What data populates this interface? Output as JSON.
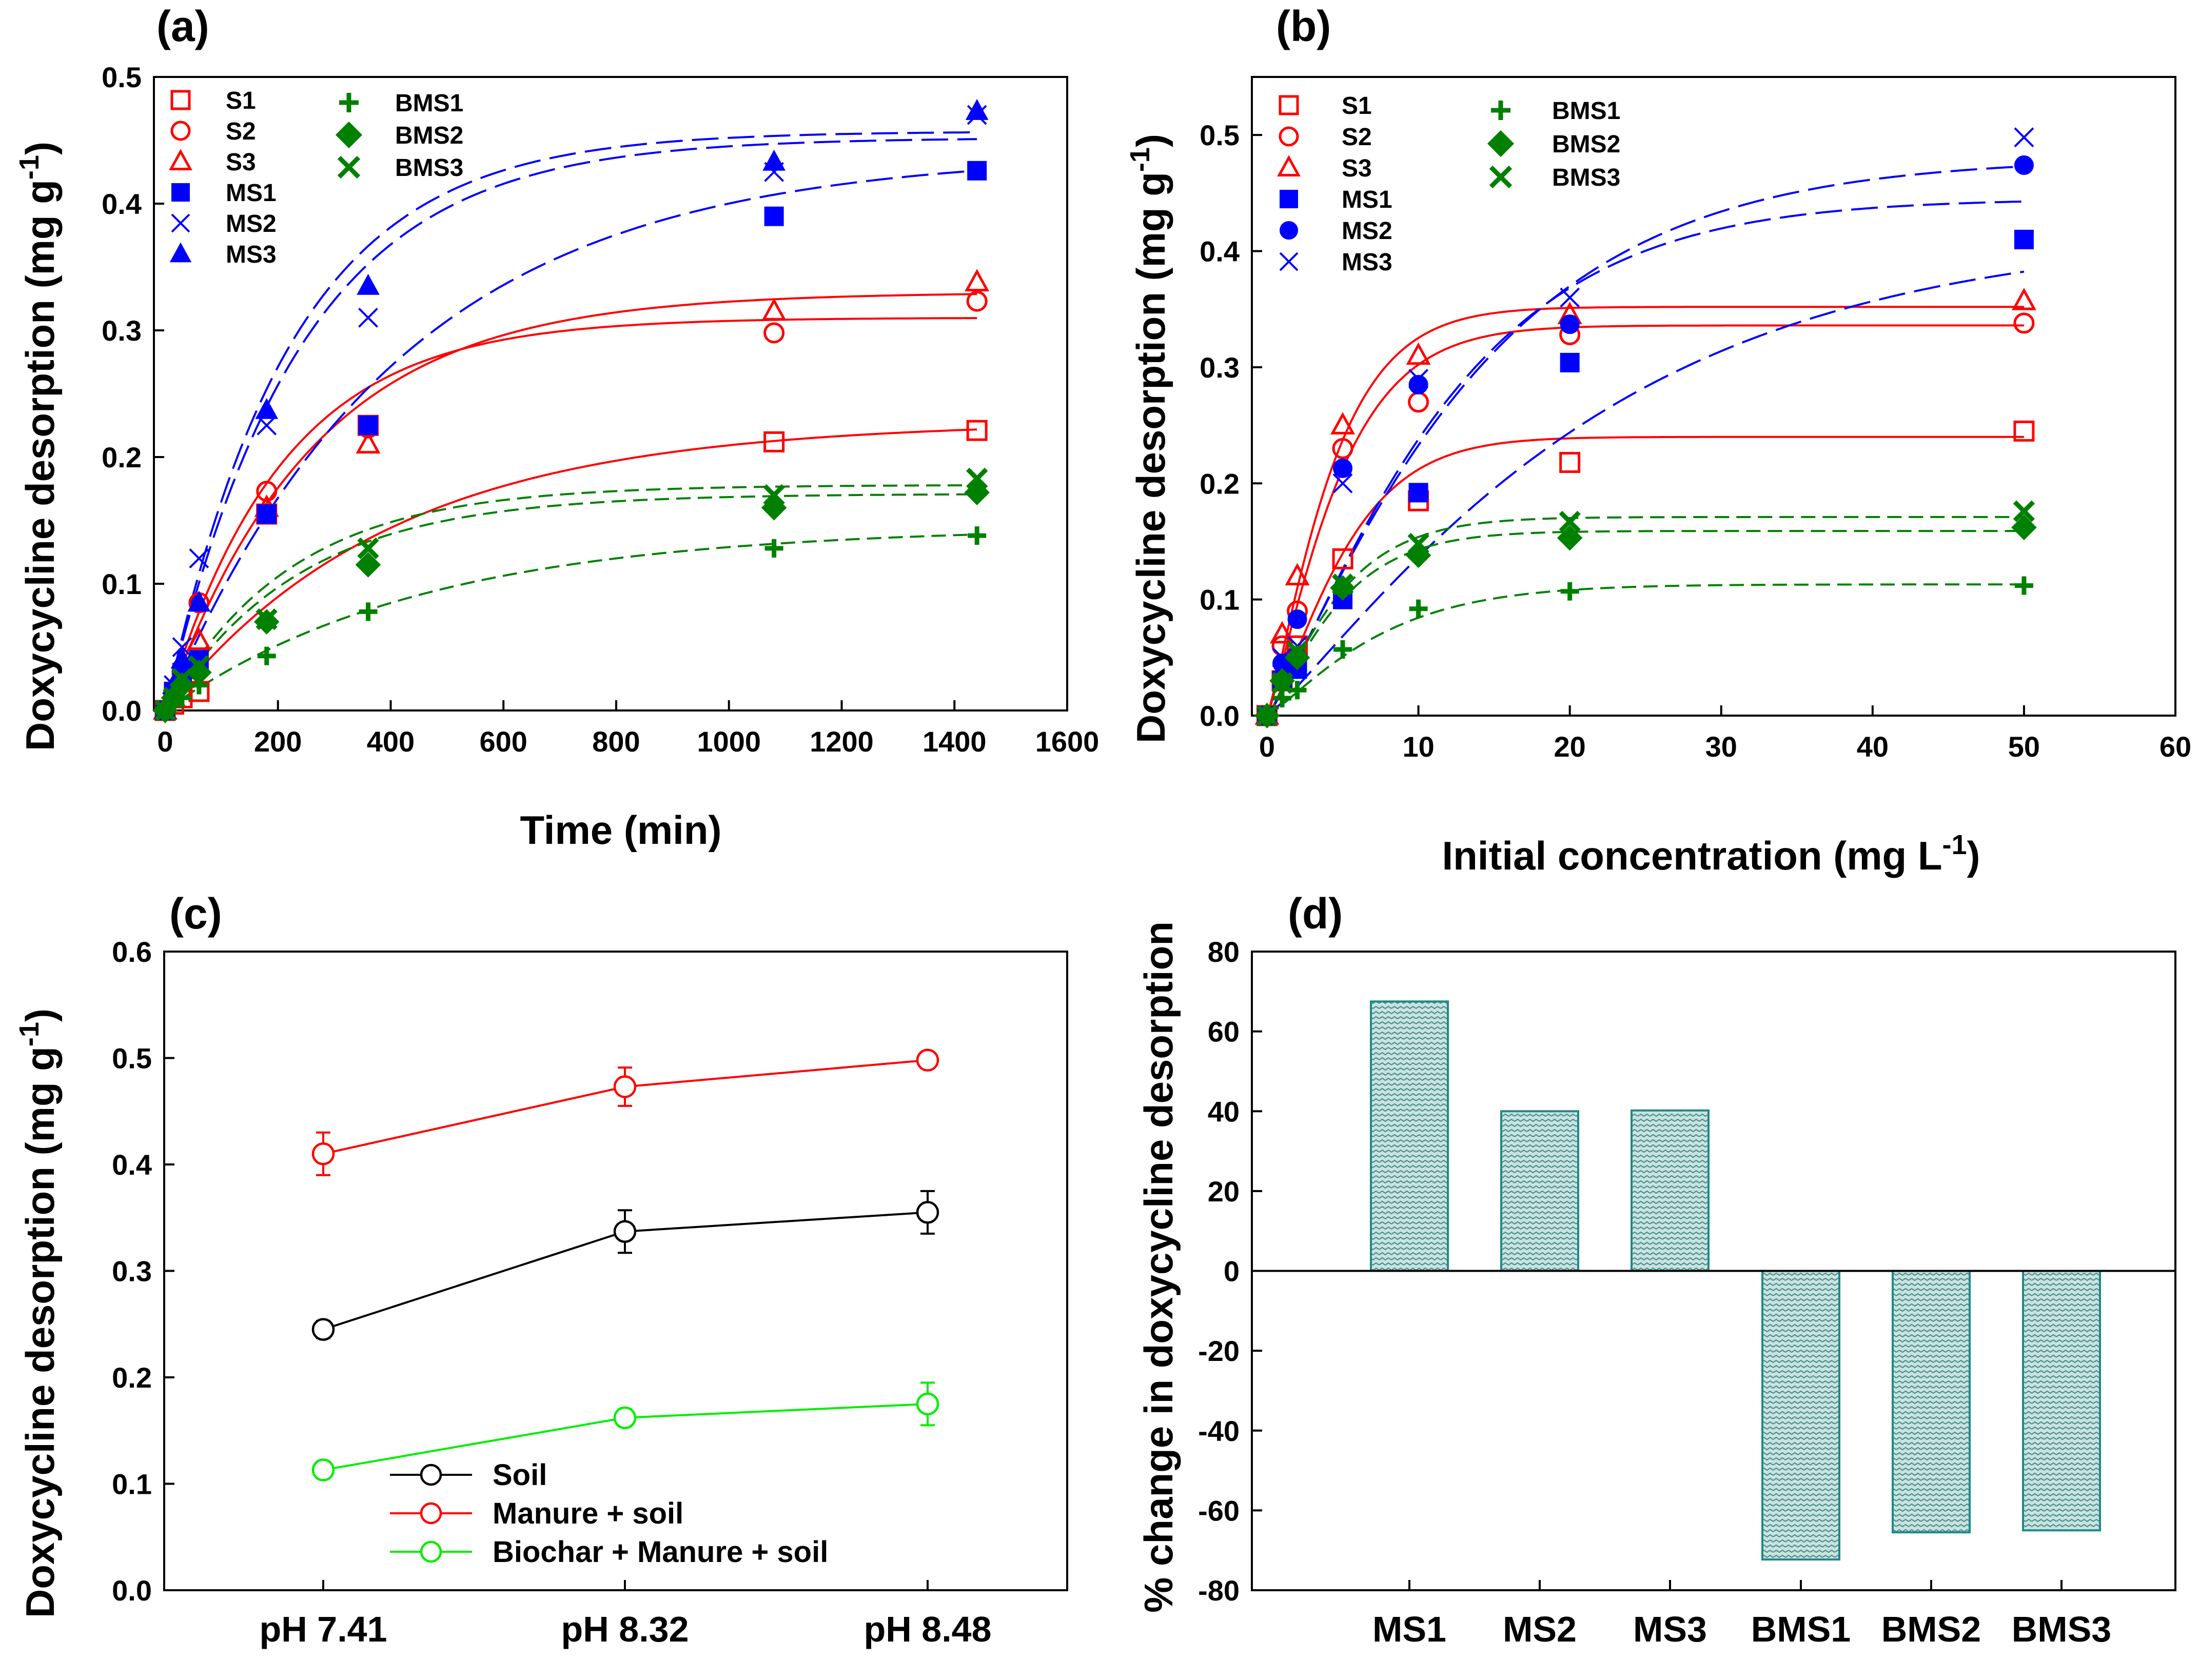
{
  "chart_data": [
    {
      "panel": "(a)",
      "type": "scatter",
      "xlabel": "Time (min)",
      "ylabel": "Doxycycline desorption (mg g-1)",
      "ylabel_base": "Doxycycline desorption (mg g",
      "ylabel_sup": "-1",
      "ylabel_close": ")",
      "xlim": [
        -20,
        1600
      ],
      "ylim": [
        0,
        0.5
      ],
      "xticks": [
        0,
        200,
        400,
        600,
        800,
        1000,
        1200,
        1400,
        1600
      ],
      "yticks": [
        0.0,
        0.1,
        0.2,
        0.3,
        0.4,
        0.5
      ],
      "xticklabels": [
        "0",
        "200",
        "400",
        "600",
        "800",
        "1000",
        "1200",
        "1400",
        "1600"
      ],
      "yticklabels": [
        "0.0",
        "0.1",
        "0.2",
        "0.3",
        "0.4",
        "0.5"
      ],
      "series": [
        {
          "name": "S1",
          "marker": "square-open",
          "color": "#ff0000",
          "x": [
            0,
            15,
            30,
            60,
            180,
            360,
            1080,
            1440
          ],
          "y": [
            0.0,
            0.005,
            0.01,
            0.015,
            0.155,
            0.225,
            0.212,
            0.221
          ],
          "fit": {
            "a": 0.228,
            "k": 0.0025,
            "style": "solid"
          }
        },
        {
          "name": "S2",
          "marker": "circle-open",
          "color": "#ff0000",
          "x": [
            0,
            15,
            30,
            60,
            180,
            360,
            1080,
            1440
          ],
          "y": [
            0.0,
            0.01,
            0.03,
            0.085,
            0.173,
            0.223,
            0.298,
            0.323
          ],
          "fit": {
            "a": 0.31,
            "k": 0.0048,
            "style": "solid"
          }
        },
        {
          "name": "S3",
          "marker": "triangle-open",
          "color": "#ff0000",
          "x": [
            0,
            15,
            30,
            60,
            180,
            360,
            1080,
            1440
          ],
          "y": [
            0.0,
            0.01,
            0.025,
            0.055,
            0.16,
            0.21,
            0.315,
            0.338
          ],
          "fit": {
            "a": 0.33,
            "k": 0.0038,
            "style": "solid"
          }
        },
        {
          "name": "MS1",
          "marker": "square-filled",
          "color": "#0000ff",
          "x": [
            0,
            15,
            30,
            60,
            180,
            360,
            1080,
            1440
          ],
          "y": [
            0.0,
            0.015,
            0.03,
            0.04,
            0.155,
            0.225,
            0.39,
            0.426
          ],
          "fit": {
            "a": 0.44,
            "k": 0.0024,
            "style": "dashed"
          }
        },
        {
          "name": "MS2",
          "marker": "x",
          "color": "#0000ff",
          "x": [
            0,
            15,
            30,
            60,
            180,
            360,
            1080,
            1440
          ],
          "y": [
            0.0,
            0.02,
            0.05,
            0.12,
            0.225,
            0.31,
            0.425,
            0.47
          ],
          "fit": {
            "a": 0.452,
            "k": 0.0042,
            "style": "dashed"
          }
        },
        {
          "name": "MS3",
          "marker": "triangle-filled",
          "color": "#0000ff",
          "x": [
            0,
            15,
            30,
            60,
            180,
            360,
            1080,
            1440
          ],
          "y": [
            0.0,
            0.02,
            0.04,
            0.085,
            0.237,
            0.335,
            0.433,
            0.473
          ],
          "fit": {
            "a": 0.457,
            "k": 0.0045,
            "style": "dashed"
          }
        },
        {
          "name": "BMS1",
          "marker": "plus",
          "color": "#008000",
          "x": [
            0,
            15,
            30,
            60,
            180,
            360,
            1080,
            1440
          ],
          "y": [
            0.0,
            0.005,
            0.01,
            0.02,
            0.043,
            0.078,
            0.128,
            0.138
          ],
          "fit": {
            "a": 0.145,
            "k": 0.0022,
            "style": "dashed"
          }
        },
        {
          "name": "BMS2",
          "marker": "diamond-filled",
          "color": "#008000",
          "x": [
            0,
            15,
            30,
            60,
            180,
            360,
            1080,
            1440
          ],
          "y": [
            0.0,
            0.01,
            0.02,
            0.03,
            0.07,
            0.115,
            0.16,
            0.172
          ],
          "fit": {
            "a": 0.171,
            "k": 0.0042,
            "style": "dashed"
          }
        },
        {
          "name": "BMS3",
          "marker": "x-thick",
          "color": "#008000",
          "x": [
            0,
            15,
            30,
            60,
            180,
            360,
            1080,
            1440
          ],
          "y": [
            0.0,
            0.01,
            0.025,
            0.035,
            0.072,
            0.128,
            0.17,
            0.183
          ],
          "fit": {
            "a": 0.178,
            "k": 0.0045,
            "style": "dashed"
          }
        }
      ]
    },
    {
      "panel": "(b)",
      "type": "scatter",
      "xlabel": "Initial concentration (mg L-1)",
      "xlabel_base": "Initial concentration (mg L",
      "xlabel_sup": "-1",
      "xlabel_close": ")",
      "ylabel": "Doxycycline desorption (mg g-1)",
      "ylabel_base": "Doxycycline desorption (mg g",
      "ylabel_sup": "-1",
      "ylabel_close": ")",
      "xlim": [
        -1,
        60
      ],
      "ylim": [
        0,
        0.55
      ],
      "xticks": [
        0,
        10,
        20,
        30,
        40,
        50,
        60
      ],
      "yticks": [
        0.0,
        0.1,
        0.2,
        0.3,
        0.4,
        0.5
      ],
      "xticklabels": [
        "0",
        "10",
        "20",
        "30",
        "40",
        "50",
        "60"
      ],
      "yticklabels": [
        "0.0",
        "0.1",
        "0.2",
        "0.3",
        "0.4",
        "0.5"
      ],
      "series": [
        {
          "name": "S1",
          "marker": "square-open",
          "color": "#ff0000",
          "x": [
            0,
            1,
            2,
            5,
            10,
            20,
            50
          ],
          "y": [
            0.0,
            0.03,
            0.06,
            0.135,
            0.185,
            0.218,
            0.245
          ],
          "fit": {
            "a": 0.24,
            "k": 0.18,
            "n": 1.3,
            "style": "solid"
          }
        },
        {
          "name": "S2",
          "marker": "circle-open",
          "color": "#ff0000",
          "x": [
            0,
            1,
            2,
            5,
            10,
            20,
            50
          ],
          "y": [
            0.0,
            0.06,
            0.09,
            0.23,
            0.27,
            0.328,
            0.338
          ],
          "fit": {
            "a": 0.336,
            "k": 0.2,
            "n": 1.2,
            "style": "solid"
          }
        },
        {
          "name": "S3",
          "marker": "triangle-open",
          "color": "#ff0000",
          "x": [
            0,
            1,
            2,
            5,
            10,
            20,
            50
          ],
          "y": [
            0.0,
            0.07,
            0.12,
            0.25,
            0.31,
            0.345,
            0.357
          ],
          "fit": {
            "a": 0.352,
            "k": 0.22,
            "n": 1.2,
            "style": "solid"
          }
        },
        {
          "name": "MS1",
          "marker": "square-filled",
          "color": "#0000ff",
          "x": [
            0,
            1,
            2,
            5,
            10,
            20,
            50
          ],
          "y": [
            0.0,
            0.03,
            0.04,
            0.1,
            0.192,
            0.304,
            0.41
          ],
          "fit": {
            "a": 0.415,
            "k": 0.045,
            "n": 1.15,
            "style": "dashed"
          }
        },
        {
          "name": "MS2",
          "marker": "circle-filled",
          "color": "#0000ff",
          "x": [
            0,
            1,
            2,
            5,
            10,
            20,
            50
          ],
          "y": [
            0.0,
            0.045,
            0.083,
            0.213,
            0.285,
            0.337,
            0.474
          ],
          "fit": {
            "a": 0.48,
            "k": 0.07,
            "n": 1.15,
            "style": "dashed"
          }
        },
        {
          "name": "MS3",
          "marker": "x",
          "color": "#0000ff",
          "x": [
            0,
            1,
            2,
            5,
            10,
            20,
            50
          ],
          "y": [
            0.0,
            0.05,
            0.06,
            0.2,
            0.29,
            0.36,
            0.498
          ],
          "fit": {
            "a": 0.445,
            "k": 0.08,
            "n": 1.2,
            "style": "dashed"
          }
        },
        {
          "name": "BMS1",
          "marker": "plus",
          "color": "#008000",
          "x": [
            0,
            1,
            2,
            5,
            10,
            20,
            50
          ],
          "y": [
            0.0,
            0.015,
            0.022,
            0.057,
            0.092,
            0.107,
            0.112
          ],
          "fit": {
            "a": 0.113,
            "k": 0.13,
            "n": 1.2,
            "style": "dashed"
          }
        },
        {
          "name": "BMS2",
          "marker": "diamond-filled",
          "color": "#008000",
          "x": [
            0,
            1,
            2,
            5,
            10,
            20,
            50
          ],
          "y": [
            0.0,
            0.03,
            0.05,
            0.11,
            0.138,
            0.153,
            0.162
          ],
          "fit": {
            "a": 0.159,
            "k": 0.2,
            "n": 1.2,
            "style": "dashed"
          }
        },
        {
          "name": "BMS3",
          "marker": "x-thick",
          "color": "#008000",
          "x": [
            0,
            1,
            2,
            5,
            10,
            20,
            50
          ],
          "y": [
            0.0,
            0.028,
            0.055,
            0.113,
            0.148,
            0.167,
            0.176
          ],
          "fit": {
            "a": 0.171,
            "k": 0.2,
            "n": 1.2,
            "style": "dashed"
          }
        }
      ]
    },
    {
      "panel": "(c)",
      "type": "line",
      "ylabel": "Doxycycline desorption (mg g-1)",
      "ylabel_base": "Doxycycline desorption (mg g",
      "ylabel_sup": "-1",
      "ylabel_close": ")",
      "categories": [
        "pH 7.41",
        "pH 8.32",
        "pH 8.48"
      ],
      "ylim": [
        0,
        0.6
      ],
      "yticks": [
        0.0,
        0.1,
        0.2,
        0.3,
        0.4,
        0.5,
        0.6
      ],
      "yticklabels": [
        "0.0",
        "0.1",
        "0.2",
        "0.3",
        "0.4",
        "0.5",
        "0.6"
      ],
      "series": [
        {
          "name": "Soil",
          "color": "#000000",
          "values": [
            0.245,
            0.337,
            0.355
          ],
          "errors": [
            0.008,
            0.02,
            0.02
          ]
        },
        {
          "name": "Manure + soil",
          "color": "#ff0000",
          "values": [
            0.41,
            0.473,
            0.498
          ],
          "errors": [
            0.02,
            0.018,
            0.005
          ]
        },
        {
          "name": "Biochar + Manure + soil",
          "color": "#00ee00",
          "values": [
            0.113,
            0.162,
            0.175
          ],
          "errors": [
            0.008,
            0.008,
            0.02
          ]
        }
      ]
    },
    {
      "panel": "(d)",
      "type": "bar",
      "ylabel": "% change in doxycycline desorption",
      "categories": [
        "MS1",
        "MS2",
        "MS3",
        "BMS1",
        "BMS2",
        "BMS3"
      ],
      "values": [
        67.5,
        40.0,
        40.2,
        -72.3,
        -65.5,
        -65.0
      ],
      "ylim": [
        -80,
        80
      ],
      "yticks": [
        -80,
        -60,
        -40,
        -20,
        0,
        20,
        40,
        60,
        80
      ],
      "yticklabels": [
        "-80",
        "-60",
        "-40",
        "-20",
        "0",
        "20",
        "40",
        "60",
        "80"
      ],
      "bar_color": "#b8d8d5",
      "bar_edge": "#1f8a87"
    }
  ]
}
